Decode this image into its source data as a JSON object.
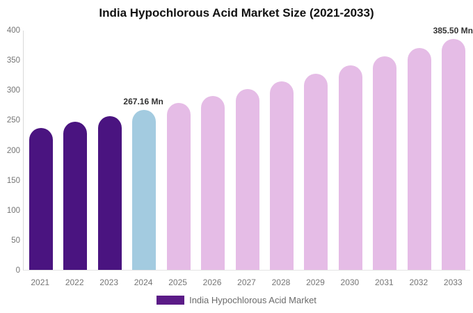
{
  "title": "India Hypochlorous Acid Market Size (2021-2033)",
  "legend": {
    "label": "India Hypochlorous Acid Market",
    "swatch_color": "#5b1b87"
  },
  "colors": {
    "historical_bar": "#4a1480",
    "base_year_bar": "#a3cbe0",
    "forecast_bar": "#e5bce6",
    "axis_line": "#d9d9d9",
    "tick_text": "#757575",
    "data_label_text": "#333333"
  },
  "chart_data": {
    "type": "bar",
    "title": "India Hypochlorous Acid Market Size (2021-2033)",
    "categories": [
      "2021",
      "2022",
      "2023",
      "2024",
      "2025",
      "2026",
      "2027",
      "2028",
      "2029",
      "2030",
      "2031",
      "2032",
      "2033"
    ],
    "values": [
      236.6,
      246.4,
      256.6,
      267.16,
      278.3,
      289.9,
      301.9,
      314.4,
      327.5,
      341.2,
      355.4,
      370.1,
      385.5
    ],
    "unit": "Mn",
    "xlabel": "",
    "ylabel": "",
    "ylim": [
      0,
      400
    ],
    "yticks": [
      0,
      50,
      100,
      150,
      200,
      250,
      300,
      350,
      400
    ],
    "grid": false,
    "legend_position": "bottom",
    "bar_colors": [
      "#4a1480",
      "#4a1480",
      "#4a1480",
      "#a3cbe0",
      "#e5bce6",
      "#e5bce6",
      "#e5bce6",
      "#e5bce6",
      "#e5bce6",
      "#e5bce6",
      "#e5bce6",
      "#e5bce6",
      "#e5bce6"
    ],
    "data_labels": [
      {
        "category": "2024",
        "text": "267.16 Mn"
      },
      {
        "category": "2033",
        "text": "385.50 Mn"
      }
    ]
  }
}
